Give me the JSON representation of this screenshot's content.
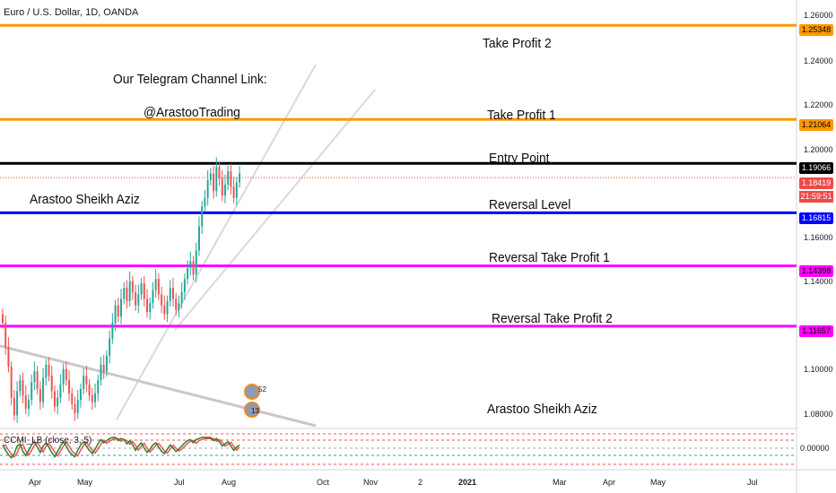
{
  "header": {
    "symbol_text": "Euro / U.S. Dollar, 1D, OANDA"
  },
  "annotations": {
    "tp2": "Take Profit 2",
    "telegram": "Our Telegram Channel Link:",
    "handle": "@ArastooTrading",
    "tp1": "Take Profit 1",
    "entry": "Entry Point",
    "author_top": "Arastoo Sheikh Aziz",
    "reversal": "Reversal Level",
    "rtp1": "Reversal Take Profit 1",
    "rtp2": "Reversal Take Profit 2",
    "author_bottom": "Arastoo Sheikh Aziz"
  },
  "indicator": {
    "label": "CCMI_LB (close, 3, 5)",
    "zero_tick": "0.00000"
  },
  "price_labels": {
    "tp2": "1.25348",
    "tp1": "1.21064",
    "entry": "1.19066",
    "current": "1.18419",
    "countdown": "21:59:51",
    "reversal": "1.16815",
    "rtp1": "1.14398",
    "rtp2": "1.11657"
  },
  "y_ticks": [
    "1.26000",
    "1.24000",
    "1.22000",
    "1.20000",
    "1.16000",
    "1.14000",
    "1.10000",
    "1.08000"
  ],
  "x_ticks": [
    "Apr",
    "May",
    "Jul",
    "Aug",
    "Oct",
    "Nov",
    "2",
    "2021",
    "Mar",
    "Apr",
    "May",
    "Jul"
  ],
  "badges": {
    "top": "52",
    "bottom": "13"
  },
  "colors": {
    "orange": "#ff9800",
    "black": "#000000",
    "blue": "#0000ff",
    "magenta": "#ff00ff",
    "up": "#26a69a",
    "down": "#ef5350",
    "current": "#f04a47"
  },
  "chart_data": {
    "type": "candlestick",
    "symbol": "Euro / U.S. Dollar, 1D, OANDA",
    "horizontal_levels": [
      {
        "name": "Take Profit 2",
        "price": 1.25348,
        "color": "#ff9800"
      },
      {
        "name": "Take Profit 1",
        "price": 1.21064,
        "color": "#ff9800"
      },
      {
        "name": "Entry Point",
        "price": 1.19066,
        "color": "#000000"
      },
      {
        "name": "Reversal Level",
        "price": 1.16815,
        "color": "#0000ff"
      },
      {
        "name": "Reversal Take Profit 1",
        "price": 1.14398,
        "color": "#ff00ff"
      },
      {
        "name": "Reversal Take Profit 2",
        "price": 1.11657,
        "color": "#ff00ff"
      }
    ],
    "last_price": 1.18419,
    "ylim": [
      1.07,
      1.265
    ],
    "y_ticks": [
      1.26,
      1.24,
      1.22,
      1.2,
      1.16,
      1.14,
      1.1,
      1.08
    ],
    "closes": [
      1.118,
      1.107,
      1.098,
      1.084,
      1.076,
      1.087,
      1.092,
      1.085,
      1.079,
      1.083,
      1.091,
      1.096,
      1.088,
      1.082,
      1.093,
      1.099,
      1.094,
      1.087,
      1.08,
      1.084,
      1.09,
      1.097,
      1.092,
      1.086,
      1.081,
      1.077,
      1.083,
      1.088,
      1.094,
      1.09,
      1.085,
      1.082,
      1.086,
      1.092,
      1.099,
      1.096,
      1.103,
      1.111,
      1.118,
      1.126,
      1.121,
      1.129,
      1.134,
      1.128,
      1.137,
      1.132,
      1.126,
      1.131,
      1.136,
      1.129,
      1.123,
      1.127,
      1.133,
      1.138,
      1.131,
      1.126,
      1.122,
      1.128,
      1.134,
      1.129,
      1.124,
      1.127,
      1.132,
      1.138,
      1.143,
      1.146,
      1.14,
      1.151,
      1.162,
      1.171,
      1.175,
      1.183,
      1.186,
      1.178,
      1.189,
      1.184,
      1.176,
      1.181,
      1.187,
      1.18,
      1.175,
      1.182,
      1.186
    ],
    "ccmi": [
      0.3,
      -0.2,
      -0.6,
      -0.9,
      -0.5,
      0.2,
      0.4,
      -0.3,
      -0.7,
      -0.2,
      0.3,
      0.6,
      0.1,
      -0.4,
      0.2,
      0.5,
      0.1,
      -0.4,
      -0.8,
      -0.3,
      0.2,
      0.6,
      0.2,
      -0.3,
      -0.6,
      -0.8,
      -0.2,
      0.3,
      0.6,
      0.2,
      -0.2,
      -0.5,
      -0.1,
      0.4,
      0.8,
      0.5,
      0.7,
      0.9,
      1.0,
      1.0,
      0.7,
      0.9,
      0.8,
      0.4,
      0.7,
      0.3,
      -0.2,
      0.2,
      0.5,
      0.0,
      -0.4,
      -0.1,
      0.3,
      0.5,
      0.1,
      -0.3,
      -0.5,
      -0.1,
      0.3,
      0.0,
      -0.3,
      -0.1,
      0.2,
      0.5,
      0.7,
      0.8,
      0.5,
      0.8,
      0.9,
      1.0,
      1.0,
      1.0,
      1.0,
      0.7,
      0.9,
      0.6,
      0.2,
      0.4,
      0.6,
      0.2,
      -0.2,
      0.1,
      0.3
    ]
  }
}
